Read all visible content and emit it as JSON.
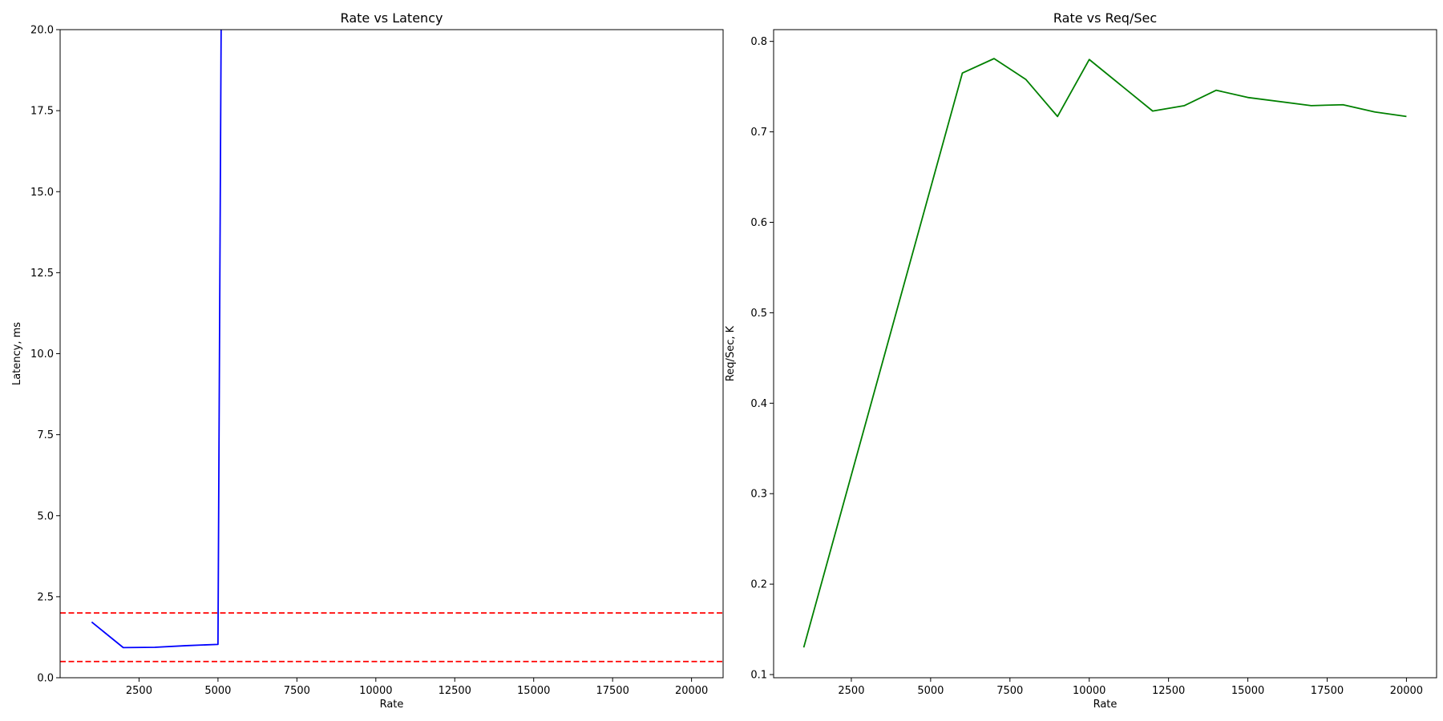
{
  "chart_data": [
    {
      "type": "line",
      "title": "Rate vs Latency",
      "xlabel": "Rate",
      "ylabel": "Latency, ms",
      "xlim": [
        0,
        21000
      ],
      "ylim": [
        0,
        20
      ],
      "x_ticks": [
        2500,
        5000,
        7500,
        10000,
        12500,
        15000,
        17500,
        20000
      ],
      "y_ticks": [
        0.0,
        2.5,
        5.0,
        7.5,
        10.0,
        12.5,
        15.0,
        17.5,
        20.0
      ],
      "x_tick_labels": [
        "2500",
        "5000",
        "7500",
        "10000",
        "12500",
        "15000",
        "17500",
        "20000"
      ],
      "y_tick_labels": [
        "0.0",
        "2.5",
        "5.0",
        "7.5",
        "10.0",
        "12.5",
        "15.0",
        "17.5",
        "20.0"
      ],
      "grid": false,
      "series": [
        {
          "color": "#0000ff",
          "x": [
            1000,
            2000,
            3000,
            4000,
            5000,
            5100
          ],
          "y": [
            1.72,
            0.93,
            0.94,
            0.99,
            1.03,
            20.0
          ]
        }
      ],
      "hlines": [
        {
          "y": 2.0,
          "color": "#ff0000",
          "style": "dashed"
        },
        {
          "y": 0.5,
          "color": "#ff0000",
          "style": "dashed"
        }
      ]
    },
    {
      "type": "line",
      "title": "Rate vs Req/Sec",
      "xlabel": "Rate",
      "ylabel": "Req/Sec, K",
      "xlim": [
        50,
        20950
      ],
      "ylim": [
        0.0965,
        0.813
      ],
      "x_ticks": [
        2500,
        5000,
        7500,
        10000,
        12500,
        15000,
        17500,
        20000
      ],
      "y_ticks": [
        0.1,
        0.2,
        0.3,
        0.4,
        0.5,
        0.6,
        0.7,
        0.8
      ],
      "x_tick_labels": [
        "2500",
        "5000",
        "7500",
        "10000",
        "12500",
        "15000",
        "17500",
        "20000"
      ],
      "y_tick_labels": [
        "0.1",
        "0.2",
        "0.3",
        "0.4",
        "0.5",
        "0.6",
        "0.7",
        "0.8"
      ],
      "grid": false,
      "series": [
        {
          "color": "#008000",
          "x": [
            1000,
            6000,
            7000,
            8000,
            9000,
            10000,
            12000,
            13000,
            14000,
            15000,
            17000,
            18000,
            19000,
            20000
          ],
          "y": [
            0.13,
            0.765,
            0.781,
            0.758,
            0.717,
            0.78,
            0.723,
            0.729,
            0.746,
            0.738,
            0.729,
            0.73,
            0.722,
            0.717
          ]
        }
      ],
      "hlines": []
    }
  ]
}
